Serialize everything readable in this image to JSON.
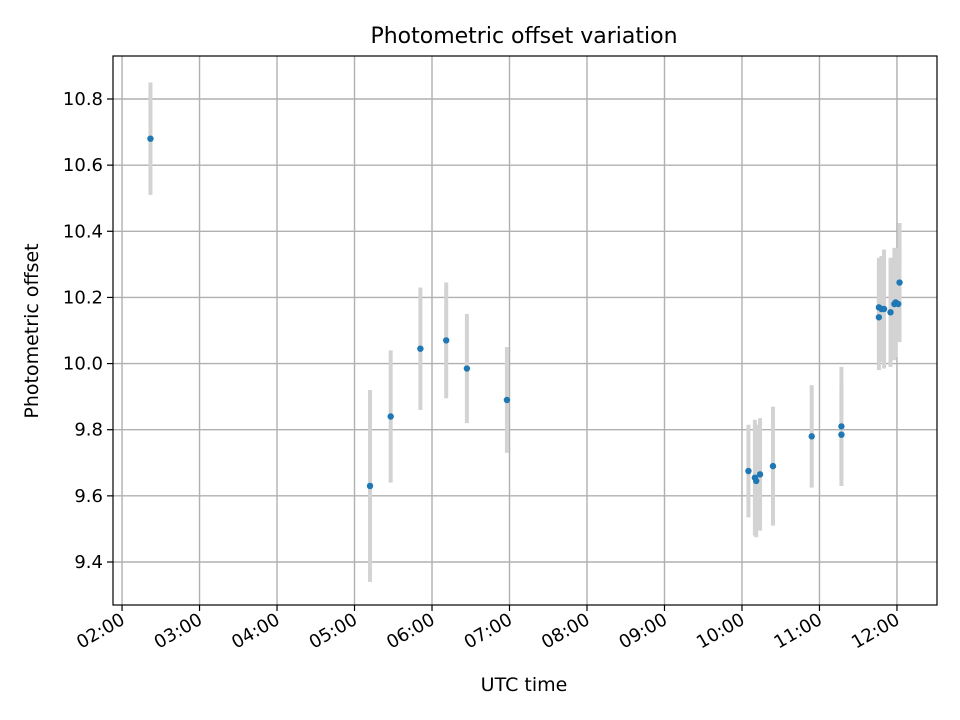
{
  "chart_data": {
    "type": "scatter",
    "title": "Photometric offset variation",
    "xlabel": "UTC time",
    "ylabel": "Photometric offset",
    "xlim": [
      "01:53",
      "12:31"
    ],
    "ylim": [
      9.27,
      10.93
    ],
    "grid": true,
    "x_ticks": [
      "02:00",
      "03:00",
      "04:00",
      "05:00",
      "06:00",
      "07:00",
      "08:00",
      "09:00",
      "10:00",
      "11:00",
      "12:00"
    ],
    "y_ticks": [
      9.4,
      9.6,
      9.8,
      10.0,
      10.2,
      10.4,
      10.6,
      10.8
    ],
    "y_tick_labels": [
      "9.4",
      "9.6",
      "9.8",
      "10.0",
      "10.2",
      "10.4",
      "10.6",
      "10.8"
    ],
    "marker_color": "#1f77b4",
    "errorbar_color": "#d3d3d3",
    "points": [
      {
        "x": "02:22",
        "y": 10.68,
        "err": 0.17
      },
      {
        "x": "05:12",
        "y": 9.63,
        "err": 0.29
      },
      {
        "x": "05:28",
        "y": 9.84,
        "err": 0.2
      },
      {
        "x": "05:51",
        "y": 10.045,
        "err": 0.185
      },
      {
        "x": "06:11",
        "y": 10.07,
        "err": 0.175
      },
      {
        "x": "06:27",
        "y": 9.985,
        "err": 0.165
      },
      {
        "x": "06:58",
        "y": 9.89,
        "err": 0.16
      },
      {
        "x": "10:05",
        "y": 9.675,
        "err": 0.14
      },
      {
        "x": "10:10",
        "y": 9.655,
        "err": 0.175
      },
      {
        "x": "10:11",
        "y": 9.645,
        "err": 0.17
      },
      {
        "x": "10:14",
        "y": 9.665,
        "err": 0.17
      },
      {
        "x": "10:24",
        "y": 9.69,
        "err": 0.18
      },
      {
        "x": "10:54",
        "y": 9.78,
        "err": 0.155
      },
      {
        "x": "11:17",
        "y": 9.785,
        "err": 0.14
      },
      {
        "x": "11:17",
        "y": 9.81,
        "err": 0.18
      },
      {
        "x": "11:46",
        "y": 10.17,
        "err": 0.15
      },
      {
        "x": "11:46",
        "y": 10.14,
        "err": 0.16
      },
      {
        "x": "11:48",
        "y": 10.165,
        "err": 0.16
      },
      {
        "x": "11:50",
        "y": 10.165,
        "err": 0.18
      },
      {
        "x": "11:55",
        "y": 10.155,
        "err": 0.165
      },
      {
        "x": "11:58",
        "y": 10.18,
        "err": 0.17
      },
      {
        "x": "11:59",
        "y": 10.185,
        "err": 0.165
      },
      {
        "x": "12:01",
        "y": 10.18,
        "err": 0.115
      },
      {
        "x": "12:02",
        "y": 10.245,
        "err": 0.18
      }
    ]
  }
}
